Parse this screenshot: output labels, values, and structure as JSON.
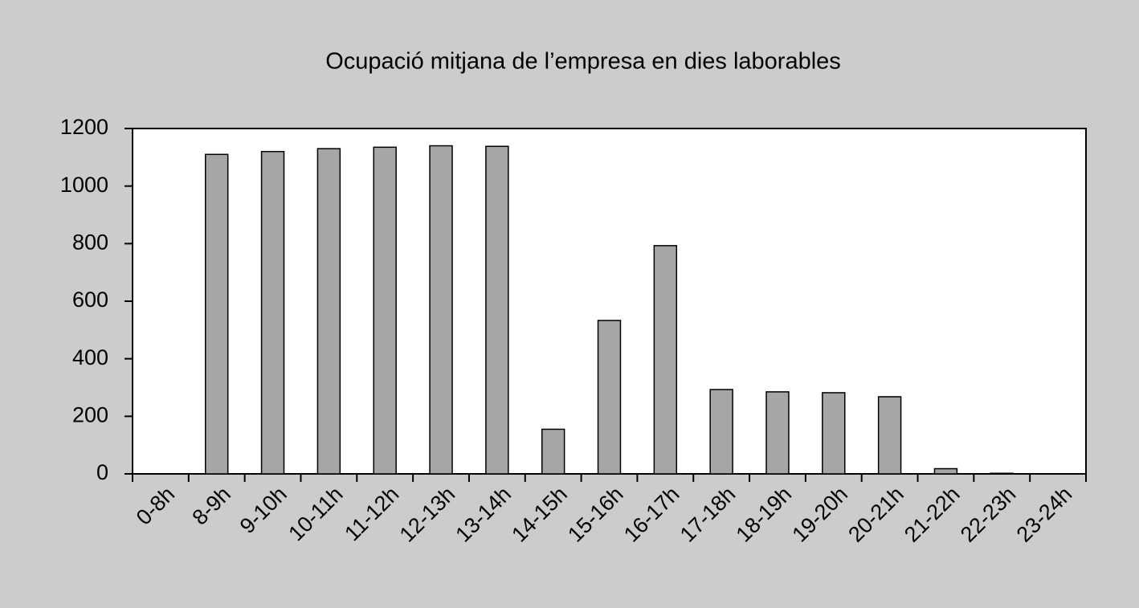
{
  "chart_data": {
    "type": "bar",
    "title": "Ocupació mitjana de l’empresa en dies laborables",
    "categories": [
      "0-8h",
      "8-9h",
      "9-10h",
      "10-11h",
      "11-12h",
      "12-13h",
      "13-14h",
      "14-15h",
      "15-16h",
      "16-17h",
      "17-18h",
      "18-19h",
      "19-20h",
      "20-21h",
      "21-22h",
      "22-23h",
      "23-24h"
    ],
    "values": [
      0,
      1110,
      1120,
      1130,
      1135,
      1140,
      1138,
      155,
      533,
      793,
      293,
      285,
      282,
      268,
      18,
      2,
      0
    ],
    "color": "#a6a6a6",
    "ylim": [
      0,
      1200
    ],
    "yticks": [
      0,
      200,
      400,
      600,
      800,
      1000,
      1200
    ],
    "grid": false
  }
}
